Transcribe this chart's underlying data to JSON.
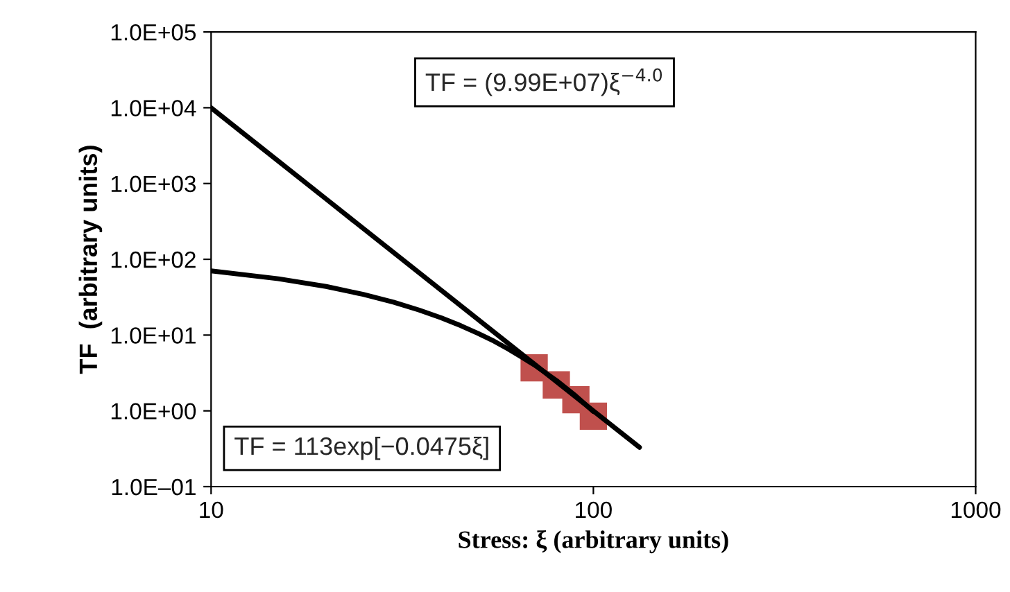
{
  "chart_data": {
    "type": "line",
    "xlabel": "Stress: ξ (arbitrary units)",
    "ylabel": "TF  (arbitrary units)",
    "log": "xy",
    "grid": false,
    "legend": false,
    "xlim": [
      10,
      1000
    ],
    "xticks": [
      10,
      100,
      1000
    ],
    "ylim": [
      0.1,
      100000
    ],
    "yticks": [
      {
        "value": 0.1,
        "label": "1.0E–01"
      },
      {
        "value": 1,
        "label": "1.0E+00"
      },
      {
        "value": 10,
        "label": "1.0E+01"
      },
      {
        "value": 100,
        "label": "1.0E+02"
      },
      {
        "value": 1000,
        "label": "1.0E+03"
      },
      {
        "value": 10000,
        "label": "1.0E+04"
      },
      {
        "value": 100000,
        "label": "1.0E+05"
      }
    ],
    "annotations": [
      "TF = (9.99E+07)ξ$^{−4.0}$",
      "TF = 113exp[−0.0475ξ]"
    ],
    "series": [
      {
        "color": "#000000",
        "marker": "none",
        "line_style": "solid",
        "x": [
          10,
          20,
          40,
          70,
          100,
          132
        ],
        "values": [
          9990,
          624,
          39,
          4.16,
          1.0,
          0.33
        ]
      },
      {
        "color": "#000000",
        "marker": "none",
        "line_style": "solid",
        "x": [
          10,
          15,
          20,
          25,
          30,
          35,
          40,
          45,
          50,
          55,
          60,
          65,
          70,
          80,
          90,
          100
        ],
        "values": [
          70.4,
          55.4,
          43.8,
          34.4,
          27.2,
          21.4,
          16.9,
          13.3,
          10.5,
          8.3,
          6.5,
          5.1,
          4.05,
          2.52,
          1.57,
          0.98
        ]
      },
      {
        "type": "scatter",
        "color": "#c0504d",
        "marker": "square",
        "x": [
          70,
          80,
          90,
          100
        ],
        "values": [
          3.7,
          2.2,
          1.4,
          0.85
        ]
      }
    ]
  }
}
